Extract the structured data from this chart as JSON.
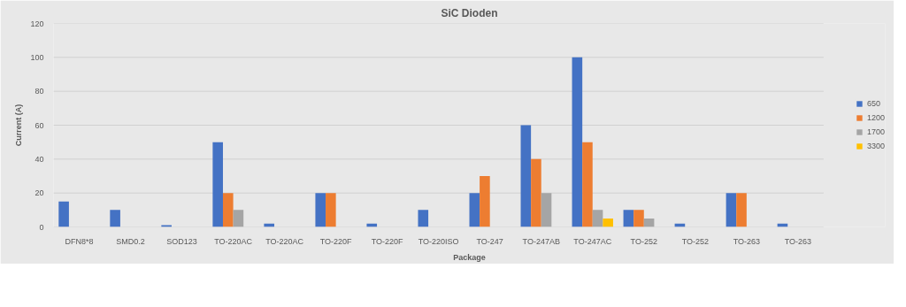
{
  "chart_data": {
    "type": "bar",
    "title": "SiC Dioden",
    "xlabel": "Package",
    "ylabel": "Current (A)",
    "categories": [
      "DFN8*8",
      "SMD0.2",
      "SOD123",
      "TO-220AC",
      "TO-220AC",
      "TO-220F",
      "TO-220F",
      "TO-220ISO",
      "TO-247",
      "TO-247AB",
      "TO-247AC",
      "TO-252",
      "TO-252",
      "TO-263",
      "TO-263"
    ],
    "series": [
      {
        "name": "650",
        "color": "#4472c4",
        "values": [
          15,
          10,
          1,
          50,
          2,
          20,
          2,
          10,
          20,
          60,
          100,
          10,
          2,
          20,
          2
        ]
      },
      {
        "name": "1200",
        "color": "#ed7d31",
        "values": [
          null,
          null,
          null,
          20,
          null,
          20,
          null,
          null,
          30,
          40,
          50,
          10,
          null,
          20,
          null
        ]
      },
      {
        "name": "1700",
        "color": "#a5a5a5",
        "values": [
          null,
          null,
          null,
          10,
          null,
          null,
          null,
          null,
          null,
          20,
          10,
          5,
          null,
          null,
          null
        ]
      },
      {
        "name": "3300",
        "color": "#ffc000",
        "values": [
          null,
          null,
          null,
          null,
          null,
          null,
          null,
          null,
          null,
          null,
          5,
          null,
          null,
          null,
          null
        ]
      }
    ],
    "ylim": [
      0,
      120
    ],
    "yticks": [
      0,
      20,
      40,
      60,
      80,
      100,
      120
    ],
    "grid": "y",
    "legend": "right"
  }
}
